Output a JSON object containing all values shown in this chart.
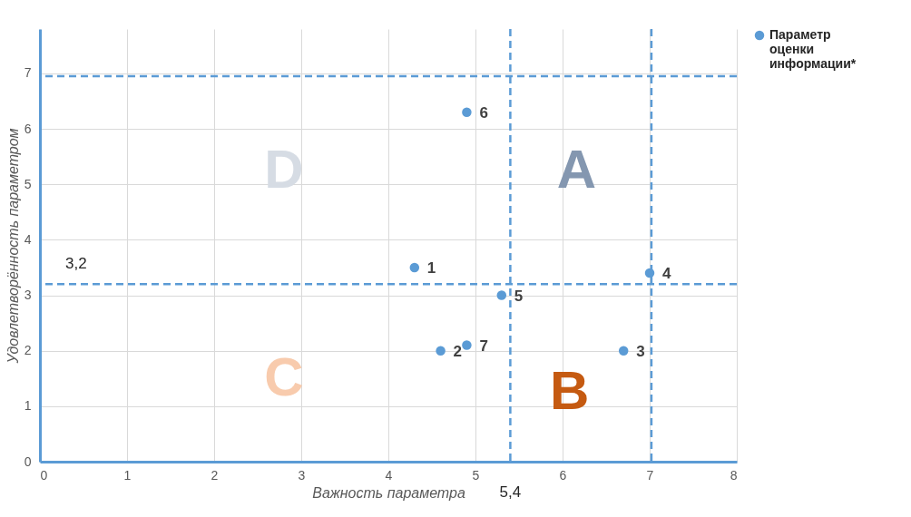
{
  "chart_data": {
    "type": "scatter",
    "xlabel": "Важность параметра",
    "ylabel": "Удовлетворённость параметром",
    "x": [
      4.3,
      4.6,
      6.7,
      7.0,
      5.3,
      4.9,
      4.9
    ],
    "series": [
      {
        "name": "Параметр оценки информации*",
        "color": "#5b9bd5",
        "values": [
          3.5,
          2.0,
          2.0,
          3.4,
          3.0,
          6.3,
          2.1
        ]
      }
    ],
    "value_labels": [
      "1",
      "2",
      "3",
      "4",
      "5",
      "6",
      "7"
    ],
    "xlim": [
      0,
      8
    ],
    "xticks": [
      0,
      1,
      2,
      3,
      4,
      5,
      6,
      7,
      8
    ],
    "ylim": [
      0,
      7.8
    ],
    "yticks": [
      0,
      1,
      2,
      3,
      4,
      5,
      6,
      7
    ],
    "grid": true,
    "legend": "right",
    "marker": "circle",
    "ref_lines": [
      {
        "axis": "x",
        "value": 5.4,
        "label": "5,4",
        "color": "#5b9bd5",
        "line_style": "dashed"
      },
      {
        "axis": "x",
        "value": 7.02,
        "color": "#5b9bd5",
        "line_style": "dashed"
      },
      {
        "axis": "y",
        "value": 3.2,
        "label": "3,2",
        "color": "#5b9bd5",
        "line_style": "dashed"
      },
      {
        "axis": "y",
        "value": 6.95,
        "color": "#5b9bd5",
        "line_style": "dashed"
      }
    ],
    "annotations": [
      "D",
      "A",
      "C",
      "B"
    ]
  }
}
